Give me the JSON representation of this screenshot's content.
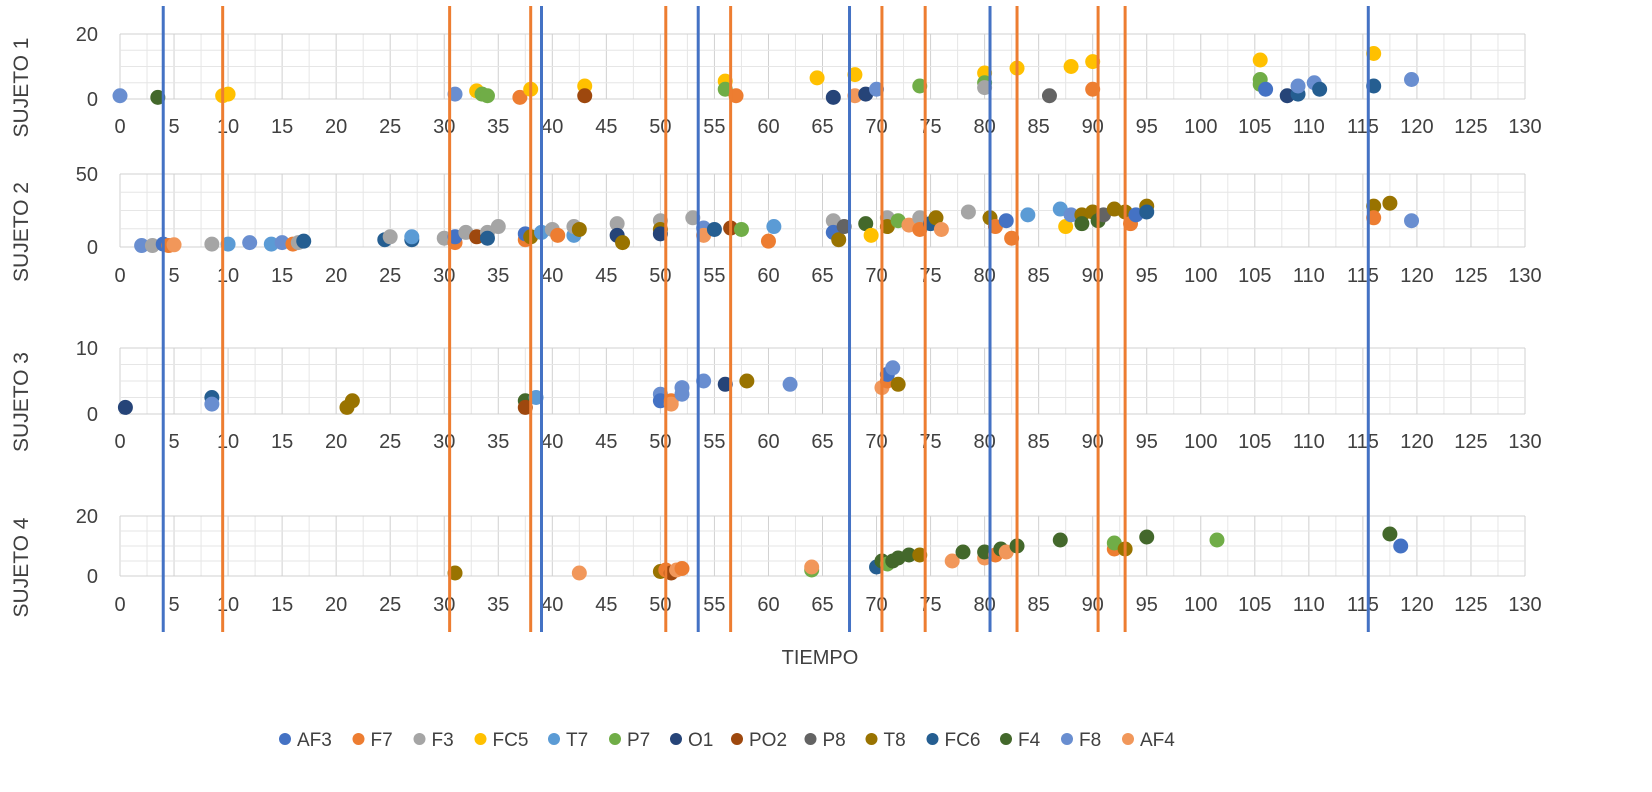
{
  "chart_data": {
    "type": "scatter",
    "xlabel": "TIEMPO",
    "xlim": [
      0,
      130
    ],
    "xticks": [
      0,
      5,
      10,
      15,
      20,
      25,
      30,
      35,
      40,
      45,
      50,
      55,
      60,
      65,
      70,
      75,
      80,
      85,
      90,
      95,
      100,
      105,
      110,
      115,
      120,
      125,
      130
    ],
    "grid": true,
    "legend_position": "bottom",
    "legend": [
      {
        "name": "AF3",
        "color": "#4472c4"
      },
      {
        "name": "F7",
        "color": "#ed7d31"
      },
      {
        "name": "F3",
        "color": "#a5a5a5"
      },
      {
        "name": "FC5",
        "color": "#ffc000"
      },
      {
        "name": "T7",
        "color": "#5b9bd5"
      },
      {
        "name": "P7",
        "color": "#70ad47"
      },
      {
        "name": "O1",
        "color": "#264478"
      },
      {
        "name": "PO2",
        "color": "#9e480e"
      },
      {
        "name": "P8",
        "color": "#636363"
      },
      {
        "name": "T8",
        "color": "#997300"
      },
      {
        "name": "FC6",
        "color": "#255e91"
      },
      {
        "name": "F4",
        "color": "#43682b"
      },
      {
        "name": "F8",
        "color": "#698ed0"
      },
      {
        "name": "AF4",
        "color": "#f1975a"
      }
    ],
    "panels": [
      {
        "ylabel": "SUJETO 1",
        "ylim": [
          0,
          20
        ],
        "yticks": [
          0,
          20
        ],
        "points": [
          [
            0,
            1,
            "F8"
          ],
          [
            3.5,
            0.5,
            "F4"
          ],
          [
            9.5,
            1,
            "FC5"
          ],
          [
            10,
            1.5,
            "FC5"
          ],
          [
            31,
            1.5,
            "F8"
          ],
          [
            33,
            2.5,
            "FC5"
          ],
          [
            33.5,
            1.5,
            "P7"
          ],
          [
            34,
            1,
            "P7"
          ],
          [
            37,
            0.5,
            "F7"
          ],
          [
            38,
            3,
            "FC5"
          ],
          [
            43,
            4,
            "FC5"
          ],
          [
            43,
            1,
            "PO2"
          ],
          [
            56,
            5.5,
            "FC5"
          ],
          [
            56,
            3,
            "P7"
          ],
          [
            57,
            1,
            "F7"
          ],
          [
            64.5,
            6.5,
            "FC5"
          ],
          [
            66,
            0.5,
            "O1"
          ],
          [
            68,
            1,
            "AF4"
          ],
          [
            68,
            7.5,
            "FC5"
          ],
          [
            69,
            1.5,
            "O1"
          ],
          [
            70,
            3,
            "F8"
          ],
          [
            74,
            4,
            "P7"
          ],
          [
            80,
            8,
            "FC5"
          ],
          [
            80,
            5,
            "P7"
          ],
          [
            80,
            3.5,
            "F3"
          ],
          [
            83,
            9.5,
            "FC5"
          ],
          [
            86,
            1,
            "P8"
          ],
          [
            88,
            10,
            "FC5"
          ],
          [
            90,
            11.5,
            "FC5"
          ],
          [
            90,
            3,
            "F7"
          ],
          [
            105.5,
            12,
            "FC5"
          ],
          [
            105.5,
            6,
            "P7"
          ],
          [
            105.5,
            4.5,
            "P7"
          ],
          [
            106,
            3,
            "AF3"
          ],
          [
            108,
            1,
            "O1"
          ],
          [
            109,
            1.5,
            "FC6"
          ],
          [
            109,
            4,
            "F8"
          ],
          [
            110.5,
            5,
            "F8"
          ],
          [
            111,
            3,
            "FC6"
          ],
          [
            116,
            14,
            "FC5"
          ],
          [
            116,
            4,
            "FC6"
          ],
          [
            119.5,
            6,
            "F8"
          ]
        ]
      },
      {
        "ylabel": "SUJETO 2",
        "ylim": [
          0,
          50
        ],
        "yticks": [
          0,
          50
        ],
        "points": [
          [
            2,
            1,
            "F8"
          ],
          [
            3,
            1,
            "F3"
          ],
          [
            4,
            2,
            "AF3"
          ],
          [
            4.5,
            1,
            "F7"
          ],
          [
            5,
            1.5,
            "AF4"
          ],
          [
            8.5,
            2,
            "F3"
          ],
          [
            10,
            2,
            "T7"
          ],
          [
            12,
            3,
            "F8"
          ],
          [
            14,
            2,
            "T7"
          ],
          [
            15,
            3,
            "F8"
          ],
          [
            16,
            2,
            "F7"
          ],
          [
            16.5,
            3,
            "F3"
          ],
          [
            17,
            4,
            "FC6"
          ],
          [
            24.5,
            5,
            "FC6"
          ],
          [
            25,
            7,
            "F3"
          ],
          [
            27,
            5,
            "FC6"
          ],
          [
            27,
            7,
            "T7"
          ],
          [
            30,
            6,
            "F3"
          ],
          [
            31,
            3,
            "F7"
          ],
          [
            31,
            7,
            "AF3"
          ],
          [
            32,
            10,
            "F3"
          ],
          [
            33,
            7,
            "PO2"
          ],
          [
            34,
            10,
            "F3"
          ],
          [
            34,
            6,
            "FC6"
          ],
          [
            35,
            14,
            "F3"
          ],
          [
            37.5,
            5,
            "F7"
          ],
          [
            37.5,
            9,
            "AF3"
          ],
          [
            38,
            7,
            "T8"
          ],
          [
            39,
            10,
            "T7"
          ],
          [
            40,
            12,
            "F3"
          ],
          [
            40.5,
            8,
            "F7"
          ],
          [
            42,
            8,
            "T7"
          ],
          [
            42,
            14,
            "F3"
          ],
          [
            42.5,
            12,
            "T8"
          ],
          [
            46,
            16,
            "F3"
          ],
          [
            46,
            8,
            "O1"
          ],
          [
            46.5,
            3,
            "T8"
          ],
          [
            50,
            18,
            "F3"
          ],
          [
            50,
            12,
            "T8"
          ],
          [
            50,
            9,
            "O1"
          ],
          [
            53,
            20,
            "F3"
          ],
          [
            54,
            13,
            "F8"
          ],
          [
            54,
            8,
            "AF4"
          ],
          [
            55,
            12,
            "FC6"
          ],
          [
            56.5,
            13,
            "PO2"
          ],
          [
            57.5,
            12,
            "P7"
          ],
          [
            60,
            4,
            "F7"
          ],
          [
            60.5,
            14,
            "T7"
          ],
          [
            66,
            18,
            "F3"
          ],
          [
            66,
            10,
            "AF3"
          ],
          [
            66.5,
            5,
            "T8"
          ],
          [
            67,
            14,
            "P8"
          ],
          [
            69,
            16,
            "F4"
          ],
          [
            69.5,
            8,
            "FC5"
          ],
          [
            71,
            20,
            "F3"
          ],
          [
            71,
            14,
            "T8"
          ],
          [
            72,
            18,
            "P7"
          ],
          [
            73,
            15,
            "AF4"
          ],
          [
            74,
            20,
            "F3"
          ],
          [
            74,
            12,
            "F7"
          ],
          [
            75,
            16,
            "FC6"
          ],
          [
            75.5,
            20,
            "T8"
          ],
          [
            76,
            12,
            "AF4"
          ],
          [
            78.5,
            24,
            "F3"
          ],
          [
            80.5,
            20,
            "T8"
          ],
          [
            81,
            14,
            "F7"
          ],
          [
            82,
            18,
            "AF3"
          ],
          [
            82.5,
            6,
            "F7"
          ],
          [
            84,
            22,
            "T7"
          ],
          [
            87,
            26,
            "T7"
          ],
          [
            87.5,
            14,
            "FC5"
          ],
          [
            88,
            22,
            "F8"
          ],
          [
            89,
            22,
            "T8"
          ],
          [
            89,
            16,
            "F4"
          ],
          [
            90,
            24,
            "T8"
          ],
          [
            90.5,
            18,
            "F4"
          ],
          [
            91,
            22,
            "P8"
          ],
          [
            92,
            26,
            "T8"
          ],
          [
            93,
            24,
            "T8"
          ],
          [
            93.5,
            16,
            "F7"
          ],
          [
            94,
            22,
            "AF3"
          ],
          [
            95,
            28,
            "T8"
          ],
          [
            95,
            24,
            "FC6"
          ],
          [
            116,
            28,
            "T8"
          ],
          [
            116,
            20,
            "F7"
          ],
          [
            117.5,
            30,
            "T8"
          ],
          [
            119.5,
            18,
            "F8"
          ]
        ]
      },
      {
        "ylabel": "SUJETO 3",
        "ylim": [
          0,
          10
        ],
        "yticks": [
          0,
          10
        ],
        "points": [
          [
            0.5,
            1,
            "O1"
          ],
          [
            8.5,
            2.5,
            "FC6"
          ],
          [
            8.5,
            1.5,
            "F8"
          ],
          [
            21,
            1,
            "T8"
          ],
          [
            21.5,
            2,
            "T8"
          ],
          [
            37.5,
            2,
            "F4"
          ],
          [
            37.5,
            1,
            "PO2"
          ],
          [
            38.5,
            2.5,
            "T7"
          ],
          [
            50,
            3,
            "F8"
          ],
          [
            50,
            2,
            "AF3"
          ],
          [
            51,
            2,
            "F7"
          ],
          [
            51,
            1.5,
            "AF4"
          ],
          [
            52,
            3,
            "F8"
          ],
          [
            52,
            4,
            "F8"
          ],
          [
            54,
            5,
            "F8"
          ],
          [
            56,
            4.5,
            "O1"
          ],
          [
            58,
            5,
            "T8"
          ],
          [
            62,
            4.5,
            "F8"
          ],
          [
            70.5,
            4,
            "AF4"
          ],
          [
            71,
            5,
            "F7"
          ],
          [
            71,
            6,
            "AF3"
          ],
          [
            71.5,
            7,
            "F8"
          ],
          [
            72,
            4.5,
            "T8"
          ]
        ]
      },
      {
        "ylabel": "SUJETO 4",
        "ylim": [
          0,
          20
        ],
        "yticks": [
          0,
          20
        ],
        "points": [
          [
            31,
            1,
            "T8"
          ],
          [
            42.5,
            1,
            "AF4"
          ],
          [
            50,
            1.5,
            "T8"
          ],
          [
            50.5,
            2,
            "F7"
          ],
          [
            51,
            1,
            "PO2"
          ],
          [
            51.5,
            2,
            "AF4"
          ],
          [
            52,
            2.5,
            "F7"
          ],
          [
            64,
            2,
            "P7"
          ],
          [
            64,
            3,
            "AF4"
          ],
          [
            70,
            3,
            "FC6"
          ],
          [
            70.5,
            5,
            "F4"
          ],
          [
            71,
            4,
            "P7"
          ],
          [
            71.5,
            5,
            "F4"
          ],
          [
            72,
            6,
            "F4"
          ],
          [
            73,
            7,
            "F4"
          ],
          [
            74,
            7,
            "T8"
          ],
          [
            77,
            5,
            "AF4"
          ],
          [
            78,
            8,
            "F4"
          ],
          [
            80,
            6,
            "AF4"
          ],
          [
            80,
            8,
            "F4"
          ],
          [
            81,
            7,
            "F7"
          ],
          [
            81.5,
            9,
            "F4"
          ],
          [
            82,
            8,
            "AF4"
          ],
          [
            83,
            10,
            "F4"
          ],
          [
            87,
            12,
            "F4"
          ],
          [
            92,
            9,
            "F7"
          ],
          [
            92,
            11,
            "P7"
          ],
          [
            93,
            9,
            "T8"
          ],
          [
            95,
            13,
            "F4"
          ],
          [
            101.5,
            12,
            "P7"
          ],
          [
            117.5,
            14,
            "F4"
          ],
          [
            118.5,
            10,
            "AF3"
          ]
        ]
      }
    ],
    "vertical_markers": [
      {
        "x": 4,
        "color": "#4472c4"
      },
      {
        "x": 9.5,
        "color": "#ed7d31"
      },
      {
        "x": 30.5,
        "color": "#ed7d31"
      },
      {
        "x": 38,
        "color": "#ed7d31"
      },
      {
        "x": 39,
        "color": "#4472c4"
      },
      {
        "x": 50.5,
        "color": "#ed7d31"
      },
      {
        "x": 53.5,
        "color": "#4472c4"
      },
      {
        "x": 56.5,
        "color": "#ed7d31"
      },
      {
        "x": 67.5,
        "color": "#4472c4"
      },
      {
        "x": 70.5,
        "color": "#ed7d31"
      },
      {
        "x": 74.5,
        "color": "#ed7d31"
      },
      {
        "x": 80.5,
        "color": "#4472c4"
      },
      {
        "x": 83,
        "color": "#ed7d31"
      },
      {
        "x": 90.5,
        "color": "#ed7d31"
      },
      {
        "x": 93,
        "color": "#ed7d31"
      },
      {
        "x": 115.5,
        "color": "#4472c4"
      }
    ]
  }
}
